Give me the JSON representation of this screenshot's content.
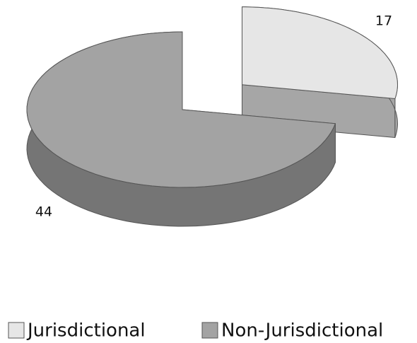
{
  "chart_data": {
    "type": "pie3d",
    "categories": [
      "Jurisdictional",
      "Non-Jurisdictional"
    ],
    "values": [
      17,
      44
    ],
    "colors": [
      "#e6e6e6",
      "#a3a3a3"
    ],
    "legend": "bottom"
  }
}
